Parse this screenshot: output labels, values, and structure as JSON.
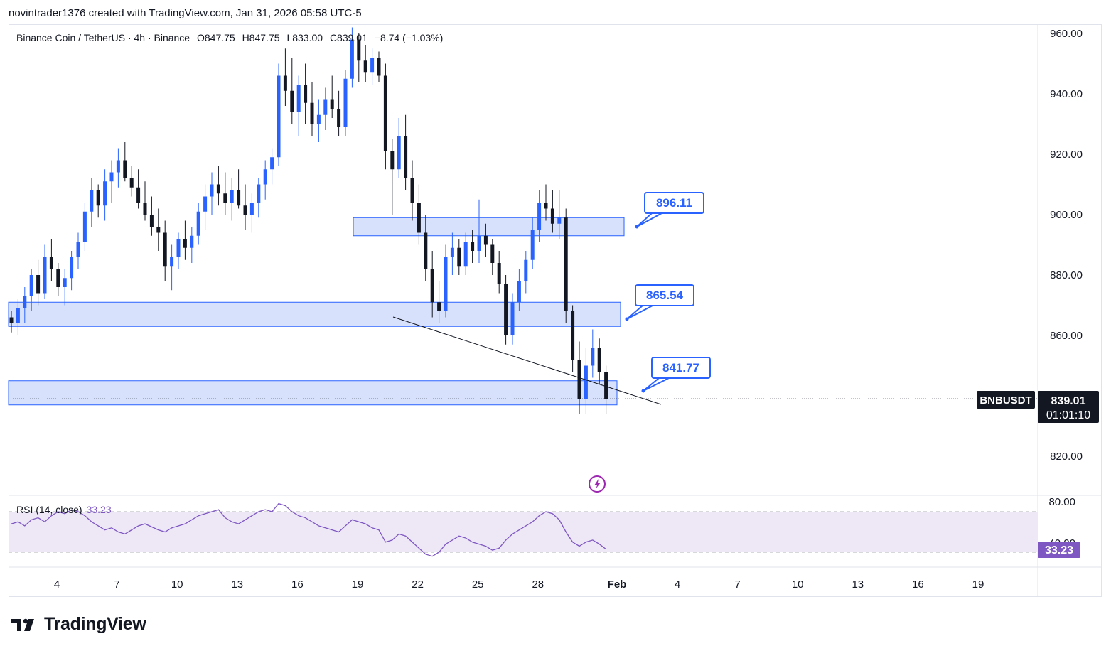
{
  "header": {
    "attribution": "novintrader1376 created with TradingView.com, Jan 31, 2026 05:58 UTC-5"
  },
  "legend": {
    "symbol": "Binance Coin / TetherUS · 4h · Binance",
    "open": "O847.75",
    "high": "H847.75",
    "low": "L833.00",
    "close": "C839.01",
    "change": "−8.74 (−1.03%)"
  },
  "price_axis": {
    "ticks": [
      "960.00",
      "940.00",
      "920.00",
      "900.00",
      "880.00",
      "860.00",
      "820.00"
    ],
    "last_price_label": "839.01",
    "countdown": "01:01:10",
    "symbol_badge": "BNBUSDT"
  },
  "time_axis": {
    "ticks": [
      "4",
      "7",
      "10",
      "13",
      "16",
      "19",
      "22",
      "25",
      "28",
      "Feb",
      "4",
      "7",
      "10",
      "13",
      "16",
      "19"
    ]
  },
  "annotations": {
    "callouts": [
      "896.11",
      "865.54",
      "841.77"
    ]
  },
  "rsi": {
    "label": "RSI (14, close)",
    "value": "33.23",
    "axis_ticks": [
      "80.00",
      "40.00"
    ],
    "value_badge": "33.23"
  },
  "footer": {
    "brand": "TradingView"
  },
  "colors": {
    "up": "#2962ff",
    "down": "#131722",
    "zone_fill": "#d1dcfb",
    "zone_border": "#2962ff",
    "rsi_line": "#7e57c2",
    "rsi_band": "#ede7f6",
    "callout_text": "#2962ff"
  },
  "chart_data": {
    "type": "candlestick",
    "symbol": "BNBUSDT",
    "timeframe": "4h",
    "ylim": [
      812,
      963
    ],
    "price_scale_ticks": [
      820,
      860,
      880,
      900,
      920,
      940,
      960
    ],
    "candles_ohlc": [
      [
        866,
        868,
        861,
        864
      ],
      [
        864,
        872,
        860,
        869
      ],
      [
        869,
        876,
        864,
        873
      ],
      [
        873,
        882,
        868,
        880
      ],
      [
        880,
        885,
        870,
        874
      ],
      [
        874,
        890,
        872,
        886
      ],
      [
        886,
        892,
        878,
        882
      ],
      [
        882,
        884,
        873,
        876
      ],
      [
        876,
        882,
        870,
        879
      ],
      [
        879,
        888,
        875,
        886
      ],
      [
        886,
        894,
        882,
        891
      ],
      [
        891,
        904,
        888,
        901
      ],
      [
        901,
        912,
        896,
        908
      ],
      [
        908,
        910,
        899,
        903
      ],
      [
        903,
        915,
        898,
        911
      ],
      [
        911,
        918,
        904,
        914
      ],
      [
        914,
        922,
        909,
        918
      ],
      [
        918,
        924,
        911,
        912
      ],
      [
        912,
        916,
        906,
        909
      ],
      [
        909,
        915,
        902,
        904
      ],
      [
        904,
        911,
        898,
        900
      ],
      [
        900,
        906,
        893,
        896
      ],
      [
        896,
        902,
        888,
        894
      ],
      [
        894,
        898,
        878,
        883
      ],
      [
        883,
        890,
        875,
        886
      ],
      [
        886,
        894,
        882,
        892
      ],
      [
        892,
        898,
        885,
        889
      ],
      [
        889,
        896,
        884,
        893
      ],
      [
        893,
        904,
        890,
        901
      ],
      [
        901,
        910,
        895,
        906
      ],
      [
        906,
        914,
        900,
        910
      ],
      [
        910,
        916,
        903,
        907
      ],
      [
        907,
        914,
        900,
        904
      ],
      [
        904,
        912,
        898,
        908
      ],
      [
        908,
        915,
        902,
        903
      ],
      [
        903,
        910,
        895,
        900
      ],
      [
        900,
        907,
        894,
        904
      ],
      [
        904,
        912,
        899,
        910
      ],
      [
        910,
        918,
        905,
        915
      ],
      [
        915,
        922,
        910,
        919
      ],
      [
        919,
        950,
        916,
        946
      ],
      [
        946,
        955,
        936,
        941
      ],
      [
        941,
        952,
        930,
        934
      ],
      [
        934,
        946,
        926,
        943
      ],
      [
        943,
        950,
        930,
        937
      ],
      [
        937,
        944,
        926,
        930
      ],
      [
        930,
        938,
        924,
        933
      ],
      [
        933,
        942,
        928,
        938
      ],
      [
        938,
        946,
        932,
        935
      ],
      [
        935,
        941,
        926,
        929
      ],
      [
        929,
        948,
        926,
        945
      ],
      [
        945,
        962,
        942,
        958
      ],
      [
        958,
        960,
        944,
        951
      ],
      [
        951,
        956,
        944,
        947
      ],
      [
        947,
        955,
        943,
        952
      ],
      [
        952,
        954,
        944,
        946
      ],
      [
        946,
        950,
        915,
        921
      ],
      [
        921,
        925,
        900,
        915
      ],
      [
        915,
        932,
        912,
        926
      ],
      [
        926,
        933,
        908,
        912
      ],
      [
        912,
        918,
        898,
        904
      ],
      [
        904,
        910,
        890,
        894
      ],
      [
        894,
        900,
        878,
        882
      ],
      [
        882,
        888,
        866,
        871
      ],
      [
        871,
        878,
        864,
        868
      ],
      [
        868,
        890,
        866,
        886
      ],
      [
        886,
        894,
        880,
        889
      ],
      [
        889,
        892,
        880,
        883
      ],
      [
        883,
        894,
        880,
        891
      ],
      [
        891,
        895,
        884,
        888
      ],
      [
        888,
        905,
        884,
        893
      ],
      [
        893,
        897,
        886,
        890
      ],
      [
        890,
        892,
        880,
        884
      ],
      [
        884,
        888,
        874,
        877
      ],
      [
        877,
        880,
        857,
        860
      ],
      [
        860,
        874,
        857,
        871
      ],
      [
        871,
        882,
        868,
        878
      ],
      [
        878,
        888,
        874,
        885
      ],
      [
        885,
        899,
        882,
        895
      ],
      [
        895,
        908,
        891,
        904
      ],
      [
        904,
        910,
        898,
        902
      ],
      [
        902,
        908,
        894,
        897
      ],
      [
        897,
        908,
        892,
        899
      ],
      [
        899,
        902,
        864,
        868
      ],
      [
        868,
        870,
        848,
        852
      ],
      [
        852,
        858,
        834,
        839
      ],
      [
        839,
        856,
        834,
        850
      ],
      [
        850,
        862,
        846,
        856
      ],
      [
        856,
        859,
        844,
        848
      ],
      [
        848,
        850,
        834,
        839
      ]
    ],
    "zones": [
      {
        "from": 893,
        "to": 899,
        "label": "896.11"
      },
      {
        "from": 863,
        "to": 871,
        "label": "865.54"
      },
      {
        "from": 837,
        "to": 845,
        "label": "841.77"
      }
    ],
    "trendline": [
      [
        866,
        840
      ]
    ],
    "last_price": 839.01,
    "rsi": {
      "period": 14,
      "source": "close",
      "ylim": [
        20,
        90
      ],
      "bands": [
        70,
        50,
        30
      ],
      "values": [
        58,
        60,
        56,
        62,
        64,
        60,
        66,
        70,
        68,
        72,
        70,
        66,
        60,
        56,
        52,
        54,
        50,
        48,
        52,
        56,
        58,
        55,
        52,
        50,
        54,
        56,
        58,
        62,
        66,
        68,
        70,
        72,
        64,
        60,
        58,
        62,
        66,
        70,
        72,
        70,
        78,
        76,
        70,
        66,
        64,
        60,
        56,
        54,
        52,
        50,
        56,
        62,
        60,
        58,
        54,
        52,
        40,
        42,
        48,
        46,
        40,
        34,
        28,
        26,
        30,
        38,
        42,
        46,
        44,
        40,
        38,
        36,
        32,
        34,
        42,
        48,
        52,
        56,
        60,
        66,
        70,
        68,
        62,
        50,
        40,
        36,
        40,
        42,
        38,
        33
      ]
    }
  }
}
